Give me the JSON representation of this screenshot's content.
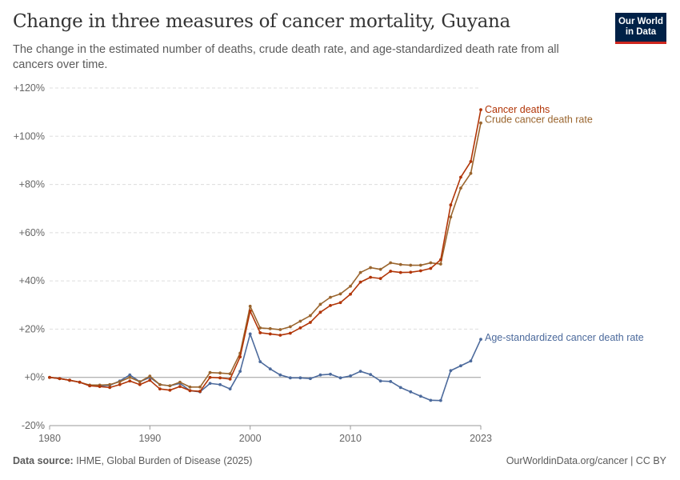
{
  "header": {
    "title": "Change in three measures of cancer mortality, Guyana",
    "subtitle": "The change in the estimated number of deaths, crude death rate, and age-standardized death rate from all cancers over time."
  },
  "logo": {
    "line1": "Our World",
    "line2": "in Data"
  },
  "footer": {
    "source_label": "Data source:",
    "source_text": "IHME, Global Burden of Disease (2025)",
    "right_text": "OurWorldinData.org/cancer | CC BY"
  },
  "chart_data": {
    "type": "line",
    "x": [
      1980,
      1981,
      1982,
      1983,
      1984,
      1985,
      1986,
      1987,
      1988,
      1989,
      1990,
      1991,
      1992,
      1993,
      1994,
      1995,
      1996,
      1997,
      1998,
      1999,
      2000,
      2001,
      2002,
      2003,
      2004,
      2005,
      2006,
      2007,
      2008,
      2009,
      2010,
      2011,
      2012,
      2013,
      2014,
      2015,
      2016,
      2017,
      2018,
      2019,
      2020,
      2021,
      2022,
      2023
    ],
    "x_ticks": [
      {
        "value": 1980,
        "label": "1980"
      },
      {
        "value": 1990,
        "label": "1990"
      },
      {
        "value": 2000,
        "label": "2000"
      },
      {
        "value": 2010,
        "label": "2010"
      },
      {
        "value": 2023,
        "label": "2023"
      }
    ],
    "y_ticks": [
      {
        "value": -20,
        "label": "-20%"
      },
      {
        "value": 0,
        "label": "+0%"
      },
      {
        "value": 20,
        "label": "+20%"
      },
      {
        "value": 40,
        "label": "+40%"
      },
      {
        "value": 60,
        "label": "+60%"
      },
      {
        "value": 80,
        "label": "+80%"
      },
      {
        "value": 100,
        "label": "+100%"
      },
      {
        "value": 120,
        "label": "+120%"
      }
    ],
    "ylim": [
      -20,
      120
    ],
    "xlim": [
      1980,
      2023
    ],
    "grid": "horizontal dashed",
    "legend": "inline labels at line ends",
    "series": [
      {
        "name": "Cancer deaths",
        "color": "#b13507",
        "values": [
          0,
          -0.5,
          -1.2,
          -2,
          -3.5,
          -3.8,
          -4.2,
          -3,
          -1.5,
          -3,
          -1.2,
          -4.8,
          -5.3,
          -3.8,
          -5.5,
          -5.8,
          0,
          -0.2,
          -0.7,
          8.5,
          27.5,
          18.5,
          18,
          17.5,
          18.3,
          20.5,
          22.8,
          27,
          29.8,
          31,
          34.5,
          39.5,
          41.5,
          41,
          44,
          43.5,
          43.6,
          44.2,
          45.2,
          48.8,
          71.5,
          83,
          89.5,
          111
        ]
      },
      {
        "name": "Crude cancer death rate",
        "color": "#9a652e",
        "values": [
          0,
          -0.5,
          -1.2,
          -2,
          -3.2,
          -3.2,
          -3,
          -1.8,
          0,
          -1.8,
          0.5,
          -3,
          -3.5,
          -2,
          -4,
          -4,
          2,
          1.8,
          1.5,
          10,
          29.5,
          20.5,
          20.2,
          19.8,
          21,
          23.3,
          25.6,
          30.3,
          33.2,
          34.6,
          37.8,
          43.5,
          45.5,
          44.8,
          47.5,
          46.8,
          46.5,
          46.5,
          47.5,
          47,
          66.5,
          78.5,
          84.6,
          105.5
        ]
      },
      {
        "name": "Age-standardized cancer death rate",
        "color": "#4c6a9c",
        "values": [
          0,
          -0.5,
          -1.2,
          -2,
          -3.5,
          -3.5,
          -3.3,
          -1.5,
          1,
          -1.8,
          0,
          -3,
          -3.5,
          -2.5,
          -5.5,
          -6,
          -2.5,
          -3,
          -4.8,
          2.5,
          18,
          6.5,
          3.5,
          1,
          -0.2,
          -0.2,
          -0.5,
          1,
          1.3,
          -0.2,
          0.6,
          2.5,
          1.2,
          -1.5,
          -1.7,
          -4.2,
          -6,
          -7.8,
          -9.5,
          -9.6,
          2.8,
          4.8,
          6.8,
          15.8
        ]
      }
    ]
  }
}
